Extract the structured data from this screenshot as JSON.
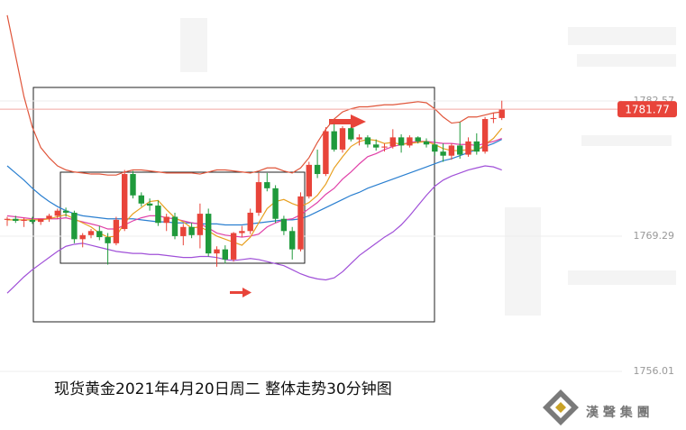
{
  "chart_data": {
    "type": "candlestick",
    "caption": "现货黄金2021年4月20日周二 整体走势30分钟图",
    "watermark": "漢 聲 集 團",
    "ylim": [
      1750.26,
      1792.49
    ],
    "yticks": [
      1756.01,
      1769.29,
      1782.57
    ],
    "last_price": 1781.77,
    "up_color": "#e8443a",
    "down_color": "#1f9a3c",
    "ohlc": [
      [
        1770.9,
        1771.2,
        1770.3,
        1771.0
      ],
      [
        1771.0,
        1771.3,
        1770.6,
        1770.8
      ],
      [
        1770.8,
        1771.1,
        1770.2,
        1770.9
      ],
      [
        1770.9,
        1771.2,
        1770.5,
        1770.7
      ],
      [
        1770.7,
        1771.0,
        1770.4,
        1771.0
      ],
      [
        1771.0,
        1771.5,
        1770.7,
        1771.3
      ],
      [
        1771.3,
        1772.0,
        1771.0,
        1771.8
      ],
      [
        1771.8,
        1772.1,
        1771.2,
        1771.6
      ],
      [
        1771.6,
        1771.8,
        1768.6,
        1769.0
      ],
      [
        1769.0,
        1769.6,
        1768.2,
        1769.4
      ],
      [
        1769.4,
        1770.0,
        1769.1,
        1769.8
      ],
      [
        1769.8,
        1770.3,
        1768.9,
        1769.2
      ],
      [
        1769.2,
        1769.6,
        1766.5,
        1768.6
      ],
      [
        1768.6,
        1771.2,
        1768.4,
        1770.9
      ],
      [
        1770.0,
        1775.8,
        1769.8,
        1775.4
      ],
      [
        1775.4,
        1775.7,
        1773.0,
        1773.3
      ],
      [
        1773.3,
        1773.6,
        1772.2,
        1772.5
      ],
      [
        1772.5,
        1773.0,
        1771.8,
        1772.3
      ],
      [
        1772.3,
        1772.8,
        1770.3,
        1770.6
      ],
      [
        1770.6,
        1771.5,
        1769.8,
        1771.2
      ],
      [
        1771.2,
        1771.6,
        1769.0,
        1769.3
      ],
      [
        1769.3,
        1770.5,
        1768.4,
        1770.2
      ],
      [
        1770.2,
        1770.6,
        1769.1,
        1769.4
      ],
      [
        1769.4,
        1772.5,
        1768.1,
        1771.5
      ],
      [
        1771.5,
        1772.0,
        1767.3,
        1767.6
      ],
      [
        1767.6,
        1768.3,
        1766.3,
        1768.0
      ],
      [
        1768.0,
        1768.4,
        1766.6,
        1767.0
      ],
      [
        1767.0,
        1769.7,
        1766.8,
        1769.6
      ],
      [
        1769.6,
        1770.3,
        1769.2,
        1769.8
      ],
      [
        1769.8,
        1772.0,
        1769.5,
        1771.6
      ],
      [
        1771.6,
        1775.5,
        1771.3,
        1774.6
      ],
      [
        1774.6,
        1775.5,
        1773.7,
        1774.0
      ],
      [
        1774.0,
        1774.3,
        1770.6,
        1771.0
      ],
      [
        1771.0,
        1771.3,
        1769.4,
        1769.8
      ],
      [
        1769.8,
        1770.2,
        1767.0,
        1768.0
      ],
      [
        1768.0,
        1773.6,
        1767.8,
        1773.2
      ],
      [
        1773.2,
        1776.6,
        1773.0,
        1776.3
      ],
      [
        1776.3,
        1777.8,
        1775.0,
        1775.4
      ],
      [
        1775.4,
        1780.0,
        1775.2,
        1779.6
      ],
      [
        1779.6,
        1780.3,
        1777.6,
        1777.8
      ],
      [
        1777.8,
        1780.1,
        1777.5,
        1779.9
      ],
      [
        1779.9,
        1780.0,
        1778.6,
        1778.8
      ],
      [
        1778.8,
        1779.3,
        1778.2,
        1779.0
      ],
      [
        1779.0,
        1779.2,
        1778.0,
        1778.3
      ],
      [
        1778.3,
        1778.8,
        1777.7,
        1778.0
      ],
      [
        1778.0,
        1778.4,
        1777.6,
        1778.1
      ],
      [
        1778.1,
        1779.8,
        1777.9,
        1779.0
      ],
      [
        1779.0,
        1779.3,
        1777.5,
        1778.2
      ],
      [
        1778.2,
        1779.2,
        1778.0,
        1779.0
      ],
      [
        1779.0,
        1779.1,
        1778.4,
        1778.6
      ],
      [
        1778.6,
        1778.9,
        1778.0,
        1778.3
      ],
      [
        1778.3,
        1778.8,
        1777.2,
        1777.6
      ],
      [
        1777.6,
        1778.4,
        1776.6,
        1777.2
      ],
      [
        1777.2,
        1778.4,
        1776.8,
        1778.2
      ],
      [
        1778.2,
        1780.5,
        1776.9,
        1777.3
      ],
      [
        1777.3,
        1779.0,
        1777.1,
        1778.6
      ],
      [
        1778.6,
        1779.4,
        1777.3,
        1777.6
      ],
      [
        1777.6,
        1781.0,
        1777.4,
        1780.8
      ],
      [
        1780.8,
        1781.4,
        1780.4,
        1780.9
      ],
      [
        1780.9,
        1782.6,
        1780.7,
        1781.77
      ]
    ],
    "series": [
      {
        "color": "#e0553a",
        "values": [
          1791,
          1787,
          1783,
          1780,
          1778,
          1777,
          1776.2,
          1775.8,
          1775.6,
          1775.5,
          1775.4,
          1775.4,
          1775.3,
          1775.3,
          1775.6,
          1775.8,
          1775.8,
          1775.7,
          1775.6,
          1775.5,
          1775.5,
          1775.5,
          1775.5,
          1775.4,
          1775.6,
          1775.8,
          1775.8,
          1775.7,
          1775.6,
          1775.5,
          1775.7,
          1776.0,
          1776.0,
          1775.7,
          1775.5,
          1776.0,
          1777.0,
          1778.5,
          1779.8,
          1780.8,
          1781.5,
          1781.8,
          1782.0,
          1782.0,
          1782.1,
          1782.2,
          1782.2,
          1782.3,
          1782.4,
          1782.5,
          1782.4,
          1781.8,
          1781.0,
          1780.4,
          1780.5,
          1781.0,
          1781.0,
          1781.2,
          1781.4,
          1781.5
        ]
      },
      {
        "color": "#a050d8",
        "values": [
          1763.7,
          1764.5,
          1765.3,
          1766.0,
          1766.6,
          1767.2,
          1767.8,
          1768.3,
          1768.5,
          1768.6,
          1768.4,
          1768.2,
          1768.0,
          1767.8,
          1767.7,
          1767.6,
          1767.6,
          1767.5,
          1767.5,
          1767.4,
          1767.3,
          1767.2,
          1767.2,
          1767.3,
          1767.3,
          1767.2,
          1767.0,
          1766.9,
          1767.0,
          1767.1,
          1767.0,
          1766.8,
          1766.6,
          1766.4,
          1766.0,
          1765.6,
          1765.3,
          1765.1,
          1765.0,
          1765.2,
          1765.8,
          1766.6,
          1767.4,
          1768.0,
          1768.6,
          1769.2,
          1769.7,
          1770.4,
          1771.3,
          1772.3,
          1773.3,
          1774.2,
          1774.8,
          1775.2,
          1775.5,
          1775.8,
          1776.0,
          1776.2,
          1776.1,
          1775.8
        ]
      },
      {
        "color": "#2a7fd0",
        "values": [
          1776.2,
          1775.5,
          1774.8,
          1774.0,
          1773.3,
          1772.7,
          1772.2,
          1771.8,
          1771.5,
          1771.3,
          1771.2,
          1771.1,
          1771.0,
          1771.0,
          1771.0,
          1771.0,
          1770.9,
          1770.8,
          1770.7,
          1770.7,
          1770.6,
          1770.6,
          1770.6,
          1770.5,
          1770.5,
          1770.5,
          1770.4,
          1770.4,
          1770.4,
          1770.5,
          1770.6,
          1770.7,
          1770.8,
          1770.9,
          1770.9,
          1771.0,
          1771.3,
          1771.7,
          1772.1,
          1772.5,
          1772.9,
          1773.3,
          1773.6,
          1774.0,
          1774.3,
          1774.6,
          1774.9,
          1775.2,
          1775.5,
          1775.8,
          1776.1,
          1776.4,
          1776.7,
          1776.9,
          1777.2,
          1777.5,
          1777.8,
          1778.1,
          1778.4,
          1778.8
        ]
      },
      {
        "color": "#e040a8",
        "values": [
          1771.3,
          1771.2,
          1771.1,
          1771.0,
          1771.0,
          1771.0,
          1771.0,
          1771.1,
          1770.9,
          1770.7,
          1770.5,
          1770.3,
          1770.0,
          1770.0,
          1770.4,
          1770.8,
          1771.1,
          1771.3,
          1771.3,
          1771.1,
          1771.0,
          1770.8,
          1770.6,
          1770.5,
          1770.1,
          1769.6,
          1769.4,
          1769.3,
          1769.2,
          1769.3,
          1769.5,
          1770.2,
          1770.6,
          1770.9,
          1771.0,
          1771.4,
          1772.0,
          1772.6,
          1773.4,
          1774.0,
          1774.9,
          1775.6,
          1776.4,
          1777.1,
          1777.4,
          1777.8,
          1778.1,
          1778.3,
          1778.5,
          1778.6,
          1778.6,
          1778.5,
          1778.4,
          1778.4,
          1778.3,
          1778.3,
          1778.2,
          1778.4,
          1778.6,
          1778.9
        ]
      },
      {
        "color": "#e8a020",
        "values": [
          1770.9,
          1770.9,
          1770.9,
          1770.9,
          1770.9,
          1771.0,
          1771.2,
          1771.4,
          1771.0,
          1770.6,
          1770.2,
          1769.6,
          1769.2,
          1769.3,
          1770.6,
          1771.5,
          1772.1,
          1772.7,
          1772.8,
          1771.9,
          1771.1,
          1770.7,
          1770.1,
          1770.2,
          1769.8,
          1769.3,
          1769.0,
          1768.7,
          1768.4,
          1769.2,
          1770.6,
          1772.0,
          1772.7,
          1772.9,
          1772.5,
          1772.2,
          1772.6,
          1773.3,
          1774.4,
          1776.0,
          1777.1,
          1778.1,
          1778.6,
          1778.8,
          1778.7,
          1778.4,
          1778.5,
          1778.3,
          1778.4,
          1778.5,
          1778.6,
          1778.3,
          1777.9,
          1777.7,
          1777.7,
          1777.8,
          1777.7,
          1778.3,
          1778.9,
          1779.9
        ]
      }
    ]
  }
}
